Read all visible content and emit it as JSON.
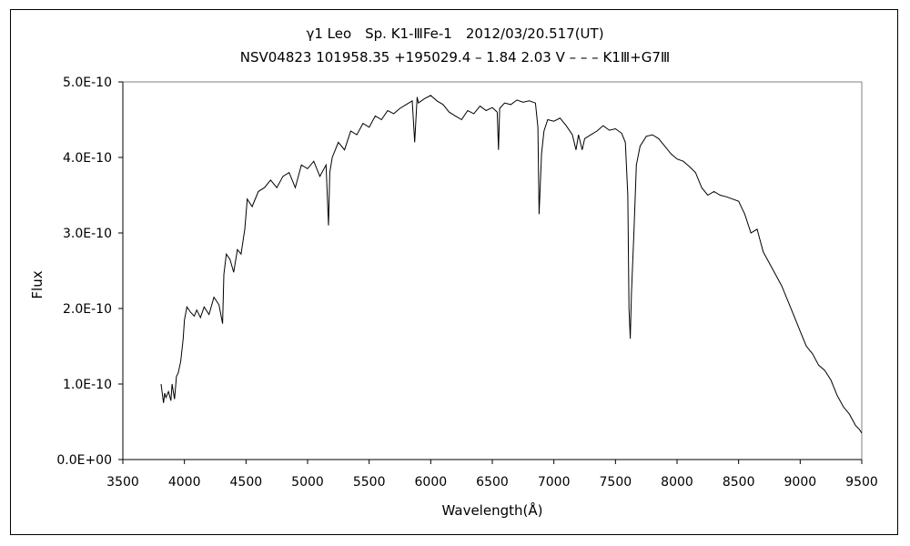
{
  "chart_data": {
    "type": "line",
    "title_line1": "γ1 Leo　Sp. K1-ⅢFe-1　2012/03/20.517(UT)",
    "title_line2": "NSV04823 101958.35 +195029.4 – 1.84 2.03 V – – – K1Ⅲ+G7Ⅲ",
    "xlabel": "Wavelength(Å)",
    "ylabel": "Flux",
    "xlim": [
      3500,
      9500
    ],
    "ylim": [
      0,
      5e-10
    ],
    "x_ticks": [
      "3500",
      "4000",
      "4500",
      "5000",
      "5500",
      "6000",
      "6500",
      "7000",
      "7500",
      "8000",
      "8500",
      "9000",
      "9500"
    ],
    "y_ticks": [
      "0.0E+00",
      "1.0E-10",
      "2.0E-10",
      "3.0E-10",
      "4.0E-10",
      "5.0E-10"
    ],
    "grid": false,
    "legend": "none",
    "series": [
      {
        "color": "#000000",
        "x": [
          3810,
          3830,
          3840,
          3850,
          3870,
          3890,
          3900,
          3920,
          3935,
          3950,
          3970,
          3990,
          4000,
          4020,
          4050,
          4080,
          4100,
          4130,
          4160,
          4200,
          4240,
          4280,
          4310,
          4320,
          4340,
          4370,
          4400,
          4430,
          4460,
          4490,
          4510,
          4550,
          4600,
          4650,
          4700,
          4750,
          4800,
          4850,
          4900,
          4950,
          5000,
          5050,
          5100,
          5150,
          5170,
          5180,
          5200,
          5250,
          5300,
          5350,
          5400,
          5450,
          5500,
          5550,
          5600,
          5650,
          5700,
          5750,
          5800,
          5850,
          5870,
          5890,
          5900,
          5950,
          6000,
          6050,
          6100,
          6150,
          6200,
          6250,
          6300,
          6350,
          6400,
          6450,
          6500,
          6540,
          6550,
          6560,
          6600,
          6650,
          6700,
          6750,
          6800,
          6850,
          6870,
          6880,
          6900,
          6920,
          6950,
          7000,
          7050,
          7100,
          7150,
          7180,
          7200,
          7230,
          7250,
          7300,
          7350,
          7400,
          7450,
          7500,
          7550,
          7580,
          7600,
          7610,
          7620,
          7630,
          7650,
          7670,
          7700,
          7750,
          7800,
          7850,
          7900,
          7950,
          8000,
          8050,
          8100,
          8150,
          8200,
          8250,
          8300,
          8350,
          8400,
          8450,
          8500,
          8550,
          8600,
          8650,
          8700,
          8750,
          8800,
          8850,
          8900,
          8950,
          9000,
          9050,
          9100,
          9150,
          9200,
          9250,
          9300,
          9350,
          9400,
          9450,
          9480,
          9500
        ],
        "y": [
          1e-10,
          7.5e-11,
          8.8e-11,
          8.2e-11,
          9e-11,
          7.8e-11,
          1e-10,
          8e-11,
          1.1e-10,
          1.15e-10,
          1.3e-10,
          1.6e-10,
          1.85e-10,
          2.02e-10,
          1.95e-10,
          1.9e-10,
          1.98e-10,
          1.88e-10,
          2.02e-10,
          1.92e-10,
          2.15e-10,
          2.05e-10,
          1.8e-10,
          2.45e-10,
          2.72e-10,
          2.65e-10,
          2.48e-10,
          2.78e-10,
          2.72e-10,
          3.05e-10,
          3.45e-10,
          3.35e-10,
          3.55e-10,
          3.6e-10,
          3.7e-10,
          3.6e-10,
          3.75e-10,
          3.8e-10,
          3.6e-10,
          3.9e-10,
          3.85e-10,
          3.95e-10,
          3.75e-10,
          3.9e-10,
          3.1e-10,
          3.8e-10,
          4e-10,
          4.2e-10,
          4.1e-10,
          4.35e-10,
          4.3e-10,
          4.45e-10,
          4.4e-10,
          4.55e-10,
          4.5e-10,
          4.62e-10,
          4.58e-10,
          4.65e-10,
          4.7e-10,
          4.75e-10,
          4.2e-10,
          4.8e-10,
          4.72e-10,
          4.78e-10,
          4.82e-10,
          4.75e-10,
          4.7e-10,
          4.6e-10,
          4.55e-10,
          4.5e-10,
          4.62e-10,
          4.58e-10,
          4.68e-10,
          4.62e-10,
          4.66e-10,
          4.6e-10,
          4.1e-10,
          4.65e-10,
          4.72e-10,
          4.7e-10,
          4.76e-10,
          4.73e-10,
          4.75e-10,
          4.72e-10,
          4.4e-10,
          3.25e-10,
          4.05e-10,
          4.35e-10,
          4.5e-10,
          4.48e-10,
          4.52e-10,
          4.42e-10,
          4.3e-10,
          4.1e-10,
          4.3e-10,
          4.1e-10,
          4.25e-10,
          4.3e-10,
          4.35e-10,
          4.42e-10,
          4.36e-10,
          4.38e-10,
          4.32e-10,
          4.2e-10,
          3.5e-10,
          2e-10,
          1.6e-10,
          2.2e-10,
          3e-10,
          3.9e-10,
          4.15e-10,
          4.28e-10,
          4.3e-10,
          4.25e-10,
          4.15e-10,
          4.05e-10,
          3.98e-10,
          3.95e-10,
          3.88e-10,
          3.8e-10,
          3.6e-10,
          3.5e-10,
          3.55e-10,
          3.5e-10,
          3.48e-10,
          3.45e-10,
          3.42e-10,
          3.25e-10,
          3e-10,
          3.05e-10,
          2.75e-10,
          2.6e-10,
          2.45e-10,
          2.3e-10,
          2.1e-10,
          1.9e-10,
          1.7e-10,
          1.5e-10,
          1.4e-10,
          1.25e-10,
          1.18e-10,
          1.05e-10,
          8.5e-11,
          7e-11,
          6e-11,
          4.5e-11,
          4e-11,
          3.5e-11
        ]
      }
    ]
  }
}
